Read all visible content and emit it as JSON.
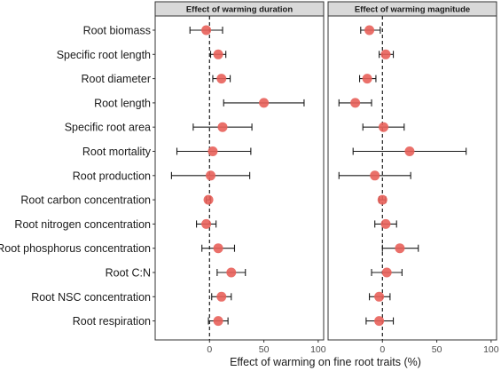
{
  "chart_data": {
    "type": "scatter",
    "subtype": "forest-plot",
    "xlabel": "Effect of warming on fine root traits (%)",
    "categories": [
      "Root biomass",
      "Specific root length",
      "Root diameter",
      "Root length",
      "Specific root area",
      "Root mortality",
      "Root production",
      "Root carbon concentration",
      "Root nitrogen concentration",
      "Root phosphorus concentration",
      "Root C:N",
      "Root NSC concentration",
      "Root respiration"
    ],
    "x_ticks": [
      "0",
      "50",
      "100"
    ],
    "x_ticks_values": [
      0,
      50,
      100
    ],
    "xlim": [
      -50,
      105
    ],
    "reference_line_x": 0,
    "point_color": "#e8605a",
    "panels": [
      {
        "title": "Effect of warming duration",
        "estimates": [
          -3,
          8,
          11,
          50,
          12,
          3,
          1,
          -1,
          -3,
          8,
          20,
          11,
          8
        ],
        "lower": [
          -18,
          1,
          3,
          13,
          -15,
          -30,
          -35,
          -3,
          -12,
          -7,
          7,
          2,
          -1
        ],
        "upper": [
          12,
          15,
          19,
          87,
          39,
          38,
          37,
          1,
          6,
          23,
          33,
          20,
          17
        ]
      },
      {
        "title": "Effect of warming magnitude",
        "estimates": [
          -12,
          3,
          -14,
          -25,
          1,
          25,
          -7,
          0,
          3,
          16,
          4,
          -3,
          -3
        ],
        "lower": [
          -20,
          -3,
          -21,
          -40,
          -18,
          -27,
          -40,
          -3,
          -7,
          0,
          -10,
          -12,
          -15
        ],
        "upper": [
          -2,
          10,
          -6,
          -10,
          20,
          77,
          26,
          3,
          13,
          33,
          18,
          7,
          10
        ]
      }
    ],
    "grid": false,
    "legend": "none"
  }
}
